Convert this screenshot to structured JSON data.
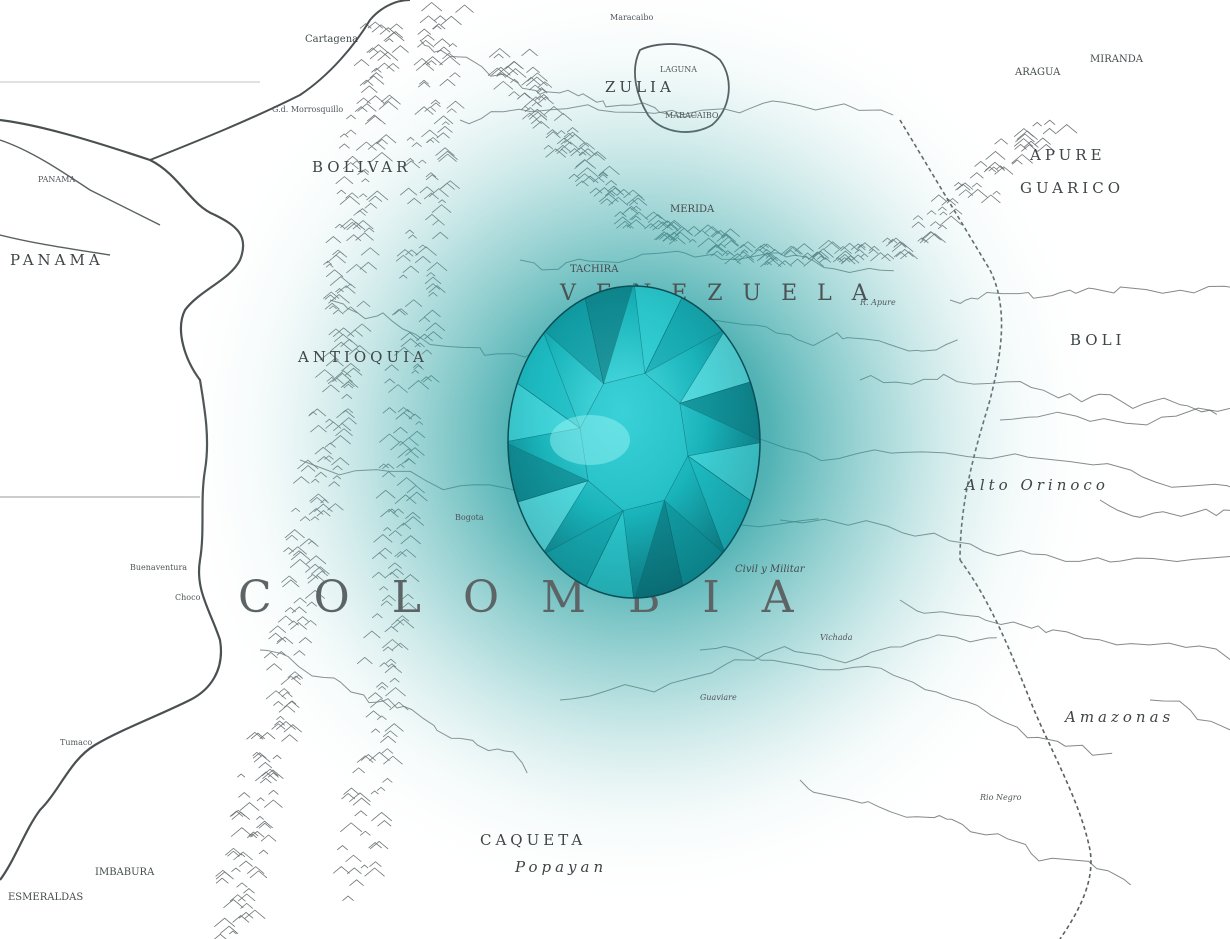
{
  "map": {
    "country_label": "COLOMBIA",
    "region_labels": {
      "venezuela": "VENEZUELA",
      "bolivar": "BOLIVAR",
      "antioquia": "ANTIOQUIA",
      "caqueta": "CAQUETA",
      "panama": "PANAMA",
      "zulia": "ZULIA",
      "apure": "APURE",
      "guarico": "GUARICO",
      "amazonas": "Amazonas",
      "alto_orinoco": "Alto Orinoco",
      "boli": "BOLI",
      "imbabura": "IMBABURA",
      "esmeraldas": "ESMERALDAS",
      "merida": "MERIDA",
      "tachira": "TACHIRA",
      "aragua": "ARAGUA",
      "miranda": "MIRANDA"
    },
    "place_labels": {
      "cartagena": "Cartagena",
      "maracaibo": "MARACAIBO",
      "laguna": "LAGUNA",
      "popayan": "Popayan",
      "civil_militar": "Civil y Militar",
      "g_morrosquillo": "G.d. Morrosquillo",
      "panama_city": "PANAMA",
      "maracaibo_top": "Maracaibo",
      "tumaco": "Tumaco",
      "buenaventura": "Buenaventura",
      "choco": "Choco",
      "bogota": "Bogota",
      "apure_river": "R. Apure",
      "guaviare": "Guaviare",
      "vichada": "Vichada",
      "rio_negro": "Rio Negro"
    },
    "colors": {
      "paper": "#ffffff",
      "ink": "#3e4244",
      "teal_glow": "#0f8f93",
      "gem_light": "#3fd1d6",
      "gem_dark": "#0a5a61"
    },
    "features": [
      "antique-map",
      "teal-radial-glow",
      "emerald-gemstone"
    ]
  }
}
